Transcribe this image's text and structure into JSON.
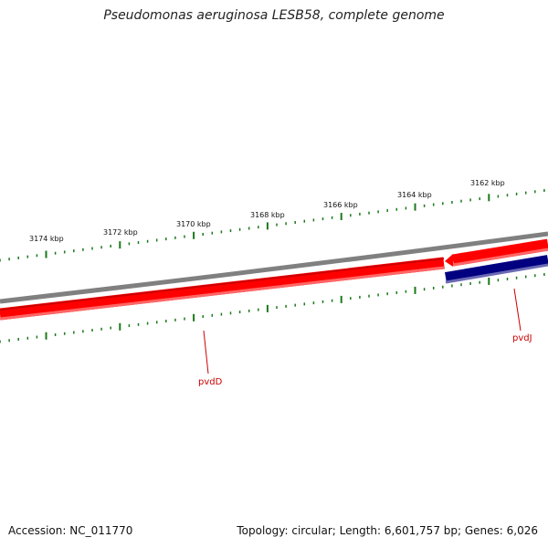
{
  "title": "Pseudomonas aeruginosa LESB58, complete genome",
  "accession": "Accession: NC_011770",
  "summary": "Topology: circular; Length: 6,601,757 bp; Genes: 6,026",
  "colors": {
    "backbone": "#808080",
    "forward_gene": "#ff0000",
    "reverse_gene": "#000080",
    "ticks": "#1a7a1a",
    "gene_label": "#cc0000"
  },
  "tick_labels": [
    "3174 kbp",
    "3172 kbp",
    "3170 kbp",
    "3168 kbp",
    "3166 kbp",
    "3164 kbp",
    "3162 kbp"
  ],
  "genes": [
    {
      "name": "pvdD",
      "strand": "forward"
    },
    {
      "name": "pvdJ",
      "strand": "forward"
    },
    {
      "name": "",
      "strand": "reverse"
    }
  ]
}
